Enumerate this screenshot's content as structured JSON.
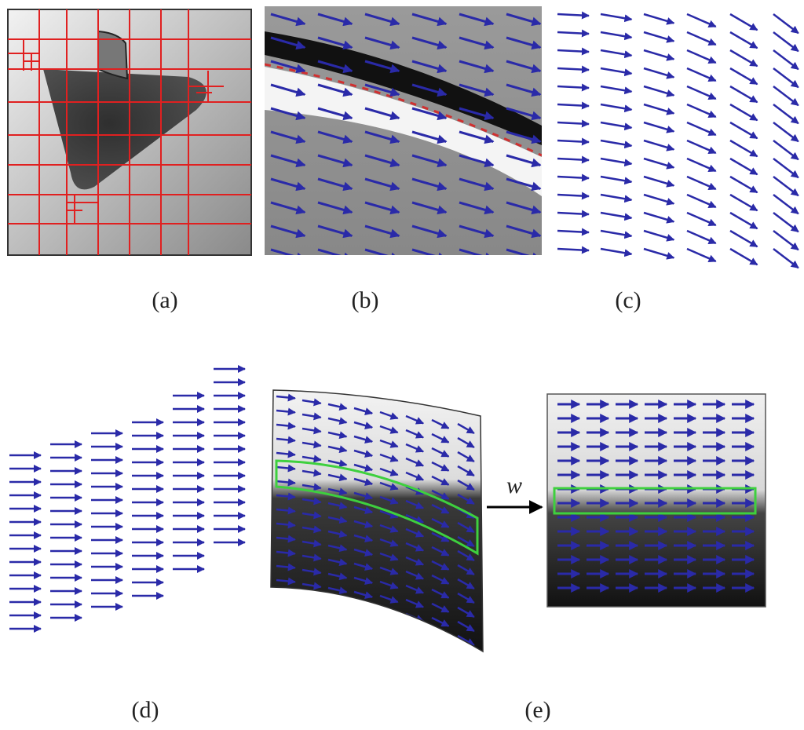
{
  "panels": [
    {
      "label": "(a)"
    },
    {
      "label": "(b)"
    },
    {
      "label": "(c)"
    },
    {
      "label": "(d)"
    },
    {
      "label": "(e)"
    }
  ],
  "warp_label": "w"
}
